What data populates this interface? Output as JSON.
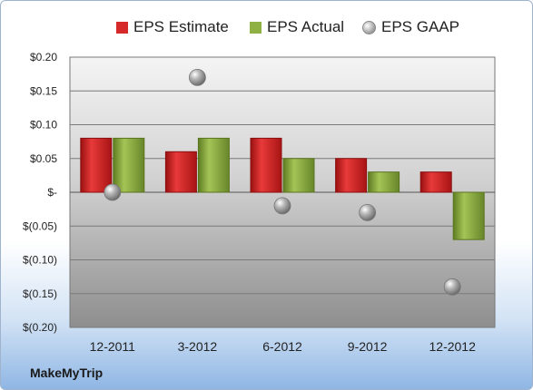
{
  "brand": "MakeMyTrip",
  "colors": {
    "estimate": "#d62a2a",
    "actual": "#8fb042",
    "gaap": "#9a9a9a"
  },
  "chart_data": {
    "type": "bar",
    "categories": [
      "12-2011",
      "3-2012",
      "6-2012",
      "9-2012",
      "12-2012"
    ],
    "series": [
      {
        "name": "EPS Estimate",
        "values": [
          0.08,
          0.06,
          0.08,
          0.05,
          0.03
        ]
      },
      {
        "name": "EPS Actual",
        "values": [
          0.08,
          0.08,
          0.05,
          0.03,
          -0.07
        ]
      },
      {
        "name": "EPS GAAP",
        "type": "scatter",
        "values": [
          0.0,
          0.17,
          -0.02,
          -0.03,
          -0.14
        ]
      }
    ],
    "ylim": [
      -0.2,
      0.2
    ],
    "yticks": [
      0.2,
      0.15,
      0.1,
      0.05,
      0.0,
      -0.05,
      -0.1,
      -0.15,
      -0.2
    ],
    "ytick_labels": [
      "$0.20",
      "$0.15",
      "$0.10",
      "$0.05",
      "$-",
      "$(0.05)",
      "$(0.10)",
      "$(0.15)",
      "$(0.20)"
    ],
    "grid": true,
    "legend_position": "top"
  }
}
